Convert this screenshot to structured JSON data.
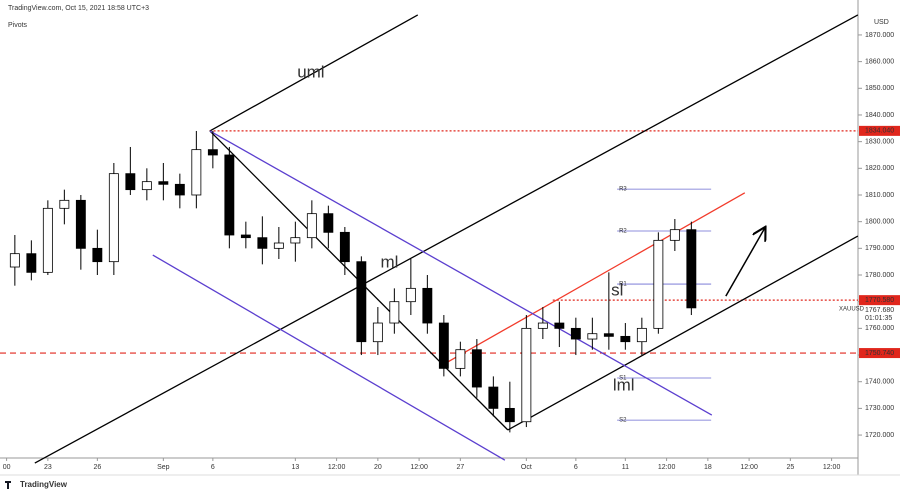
{
  "header": {
    "source": "TradingView.com, Oct 15, 2021 18:58 UTC+3",
    "indicator": "Pivots",
    "currency": "USD",
    "symbol": "XAUUSD",
    "price": "1767.680",
    "countdown": "01:01:35",
    "logo": "TradingView"
  },
  "chart_data": {
    "type": "candlestick",
    "x": [
      -2,
      -1,
      0,
      1,
      2,
      3,
      4,
      5,
      6,
      7,
      8,
      9,
      10,
      11,
      12,
      13,
      14,
      15,
      16,
      17,
      18,
      19,
      20,
      21,
      22,
      23,
      24,
      25,
      26,
      27,
      28,
      29,
      30,
      31,
      32,
      33,
      34,
      35,
      36,
      37,
      38,
      39
    ],
    "open": [
      1783,
      1788,
      1781,
      1805,
      1808,
      1790,
      1785,
      1818,
      1812,
      1815,
      1814,
      1810,
      1827,
      1825,
      1795,
      1794,
      1790,
      1792,
      1794,
      1803,
      1796,
      1785,
      1755,
      1762,
      1770,
      1775,
      1762,
      1745,
      1752,
      1738,
      1730,
      1725,
      1760,
      1762,
      1760,
      1756,
      1758,
      1757,
      1755,
      1760,
      1793,
      1797
    ],
    "high": [
      1795,
      1793,
      1808,
      1812,
      1810,
      1797,
      1822,
      1828,
      1820,
      1822,
      1818,
      1834,
      1834,
      1828,
      1800,
      1802,
      1798,
      1800,
      1808,
      1806,
      1798,
      1787,
      1768,
      1775,
      1786,
      1780,
      1765,
      1755,
      1756,
      1742,
      1740,
      1765,
      1768,
      1770,
      1764,
      1764,
      1781,
      1762,
      1764,
      1796,
      1801,
      1800
    ],
    "low": [
      1776,
      1778,
      1780,
      1799,
      1782,
      1780,
      1780,
      1810,
      1808,
      1808,
      1805,
      1805,
      1820,
      1790,
      1790,
      1784,
      1786,
      1785,
      1790,
      1790,
      1780,
      1750,
      1750,
      1758,
      1765,
      1758,
      1742,
      1742,
      1734,
      1727,
      1721,
      1723,
      1756,
      1753,
      1750,
      1752,
      1752,
      1752,
      1750,
      1758,
      1789,
      1765
    ],
    "close": [
      1788,
      1781,
      1805,
      1808,
      1790,
      1785,
      1818,
      1812,
      1815,
      1814,
      1810,
      1827,
      1825,
      1795,
      1794,
      1790,
      1792,
      1794,
      1803,
      1796,
      1785,
      1755,
      1762,
      1770,
      1775,
      1762,
      1745,
      1752,
      1738,
      1730,
      1725,
      1760,
      1762,
      1760,
      1756,
      1758,
      1757,
      1755,
      1760,
      1793,
      1797,
      1767.68
    ],
    "xlim": [
      -2.9,
      49.1
    ],
    "ylim": [
      1711.4,
      1883.1
    ],
    "xticks": [
      {
        "value": -2.5,
        "label": "00"
      },
      {
        "value": 0,
        "label": "23"
      },
      {
        "value": 3,
        "label": "26"
      },
      {
        "value": 7,
        "label": "Sep"
      },
      {
        "value": 10,
        "label": "6"
      },
      {
        "value": 15,
        "label": "13"
      },
      {
        "value": 17.5,
        "label": "12:00"
      },
      {
        "value": 20,
        "label": "20"
      },
      {
        "value": 22.5,
        "label": "12:00"
      },
      {
        "value": 25,
        "label": "27"
      },
      {
        "value": 29,
        "label": "Oct"
      },
      {
        "value": 32,
        "label": "6"
      },
      {
        "value": 35,
        "label": "11"
      },
      {
        "value": 37.5,
        "label": "12:00"
      },
      {
        "value": 40,
        "label": "18"
      },
      {
        "value": 42.5,
        "label": "12:00"
      },
      {
        "value": 45,
        "label": "25"
      },
      {
        "value": 47.5,
        "label": "12:00"
      }
    ],
    "yticks": [
      {
        "value": 1720,
        "label": "1720.000"
      },
      {
        "value": 1730,
        "label": "1730.000"
      },
      {
        "value": 1740,
        "label": "1740.000"
      },
      {
        "value": 1750,
        "label": "1750.000"
      },
      {
        "value": 1760,
        "label": "1760.000"
      },
      {
        "value": 1770,
        "label": "1770.000"
      },
      {
        "value": 1780,
        "label": "1780.000"
      },
      {
        "value": 1790,
        "label": "1790.000"
      },
      {
        "value": 1800,
        "label": "1800.000"
      },
      {
        "value": 1810,
        "label": "1810.000"
      },
      {
        "value": 1820,
        "label": "1820.000"
      },
      {
        "value": 1830,
        "label": "1830.000"
      },
      {
        "value": 1840,
        "label": "1840.000"
      },
      {
        "value": 1850,
        "label": "1850.000"
      },
      {
        "value": 1860,
        "label": "1860.000"
      },
      {
        "value": 1870,
        "label": "1870.000"
      }
    ],
    "levels": [
      {
        "value": 1834.04,
        "label": "1834.040",
        "from": 9.8,
        "dash": "2,2"
      },
      {
        "value": 1770.58,
        "label": "1770.580",
        "from": 30.6,
        "dash": "2,2"
      },
      {
        "value": 1750.74,
        "label": "1750.740",
        "from": -2.9,
        "dash": "6,4"
      }
    ],
    "pivots": [
      {
        "name": "R3",
        "value": 1812.2
      },
      {
        "name": "R2",
        "value": 1796.5
      },
      {
        "name": "R1",
        "value": 1776.6
      },
      {
        "name": "S1",
        "value": 1741.4
      },
      {
        "name": "S2",
        "value": 1725.6
      }
    ],
    "pivot_range": [
      34.5,
      40.2
    ],
    "drawings": [
      {
        "label": "uml",
        "color": "#000000",
        "x": [
          9.82,
          22.42
        ],
        "y": [
          1834,
          1877.5
        ]
      },
      {
        "label": "ml",
        "color": "#000000",
        "x": [
          -0.79,
          49.09
        ],
        "y": [
          1709.5,
          1877.5
        ]
      },
      {
        "label": "lml",
        "color": "#000000",
        "x": [
          27.88,
          49.09
        ],
        "y": [
          1721.9,
          1794.6
        ]
      },
      {
        "label": "sl",
        "color": "#f23b2b",
        "x": [
          24.24,
          42.24
        ],
        "y": [
          1747.4,
          1810.8
        ]
      },
      {
        "color": "#000000",
        "x": [
          9.82,
          27.88
        ],
        "y": [
          1834,
          1721.9
        ]
      },
      {
        "color": "#5b3fcf",
        "x": [
          9.82,
          40.24
        ],
        "y": [
          1834,
          1727.5
        ]
      },
      {
        "color": "#5b3fcf",
        "x": [
          6.36,
          27.7
        ],
        "y": [
          1787.5,
          1710.6
        ]
      }
    ],
    "arrow": {
      "x": [
        41.09,
        43.45
      ],
      "y": [
        1772.1,
        1797.6
      ]
    }
  }
}
